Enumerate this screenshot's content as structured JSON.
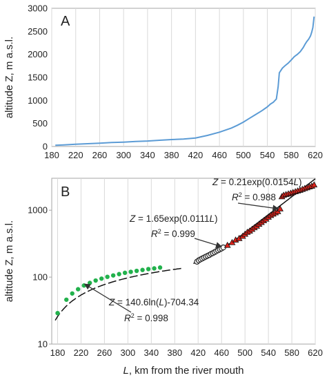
{
  "chart_data": [
    {
      "type": "line",
      "panel_label": "A",
      "ylabel": "altitude Z, m a.s.l.",
      "xlim": [
        180,
        620
      ],
      "ylim": [
        0,
        3000
      ],
      "xticks": [
        180,
        220,
        260,
        300,
        340,
        380,
        420,
        460,
        500,
        540,
        580,
        620
      ],
      "yticks": [
        0,
        500,
        1000,
        1500,
        2000,
        2500,
        3000
      ],
      "line_color": "#5b9bd5",
      "grid": "vertical",
      "series": [
        {
          "x": [
            186,
            200,
            220,
            240,
            260,
            280,
            300,
            320,
            340,
            360,
            380,
            400,
            420,
            440,
            460,
            480,
            490,
            500,
            510,
            520,
            530,
            540,
            545,
            550,
            552,
            555,
            558,
            560,
            565,
            570,
            575,
            580,
            585,
            590,
            595,
            600,
            603,
            606,
            609,
            612,
            614,
            616,
            617,
            618
          ],
          "y": [
            25,
            35,
            48,
            60,
            72,
            85,
            95,
            108,
            118,
            135,
            150,
            162,
            185,
            240,
            310,
            400,
            460,
            530,
            610,
            690,
            770,
            860,
            920,
            960,
            990,
            1030,
            1300,
            1600,
            1700,
            1760,
            1810,
            1880,
            1950,
            2000,
            2060,
            2150,
            2220,
            2280,
            2330,
            2400,
            2480,
            2580,
            2700,
            2820
          ]
        }
      ]
    },
    {
      "type": "scatter",
      "panel_label": "B",
      "ylabel": "altitude Z, m a.s.l.",
      "xlabel_italic": "L",
      "xlabel_rest": ", km from the river mouth",
      "xlim": [
        170,
        620
      ],
      "ylim": [
        10,
        3000
      ],
      "yscale": "log",
      "xticks": [
        180,
        220,
        260,
        300,
        340,
        380,
        420,
        460,
        500,
        540,
        580,
        620
      ],
      "yticks": [
        10,
        100,
        1000
      ],
      "grid": "vertical",
      "series": [
        {
          "marker": "circle",
          "color": "#22b14c",
          "x": [
            180,
            195,
            205,
            215,
            225,
            235,
            245,
            255,
            265,
            275,
            285,
            295,
            305,
            315,
            325,
            335,
            345,
            355
          ],
          "y": [
            29,
            46,
            57,
            66,
            75,
            82,
            89,
            95,
            101,
            106,
            111,
            116,
            120,
            124,
            128,
            132,
            135,
            139
          ]
        },
        {
          "marker": "open-circle",
          "color": "#222222",
          "x": [
            418,
            421,
            424,
            427,
            430,
            433,
            436,
            439,
            442,
            445,
            448,
            451,
            454,
            457,
            460,
            463
          ],
          "y": [
            170,
            178,
            184,
            190,
            196,
            202,
            208,
            214,
            222,
            228,
            236,
            244,
            252,
            260,
            268,
            278
          ]
        },
        {
          "marker": "triangle",
          "color": "#e0231b",
          "x": [
            470,
            478,
            484,
            490,
            496,
            500,
            504,
            508,
            512,
            516,
            520,
            524,
            528,
            532,
            536,
            540,
            544,
            548,
            552,
            556,
            560,
            563,
            566,
            570,
            574,
            578,
            582,
            586,
            590,
            594,
            598,
            602,
            606,
            610,
            614,
            618
          ],
          "y": [
            300,
            330,
            360,
            380,
            410,
            440,
            470,
            490,
            520,
            550,
            580,
            620,
            660,
            700,
            740,
            790,
            840,
            880,
            920,
            960,
            1050,
            1600,
            1680,
            1720,
            1760,
            1800,
            1850,
            1900,
            1950,
            2000,
            2060,
            2120,
            2180,
            2240,
            2300,
            2400
          ]
        }
      ],
      "fits": [
        {
          "equation": "Z = 140.6ln(L)-704.34",
          "eq_var": "Z",
          "eq_mid": " = 140.6ln(",
          "eq_arg": "L",
          "eq_end": ")-704.34",
          "r2": " = 0.998",
          "dash": "long"
        },
        {
          "equation": "Z = 1.65exp(0.0111L)",
          "eq_var": "Z",
          "eq_mid": " = 1.65exp(0.0111",
          "eq_arg": "L",
          "eq_end": ")",
          "r2": " = 0.999",
          "dash": "short"
        },
        {
          "equation": "Z = 0.21exp(0.0154L)",
          "eq_var": "Z",
          "eq_mid": " = 0.21exp(0.0154",
          "eq_arg": "L",
          "eq_end": ")",
          "r2": " = 0.988",
          "dash": "solid"
        }
      ]
    }
  ]
}
